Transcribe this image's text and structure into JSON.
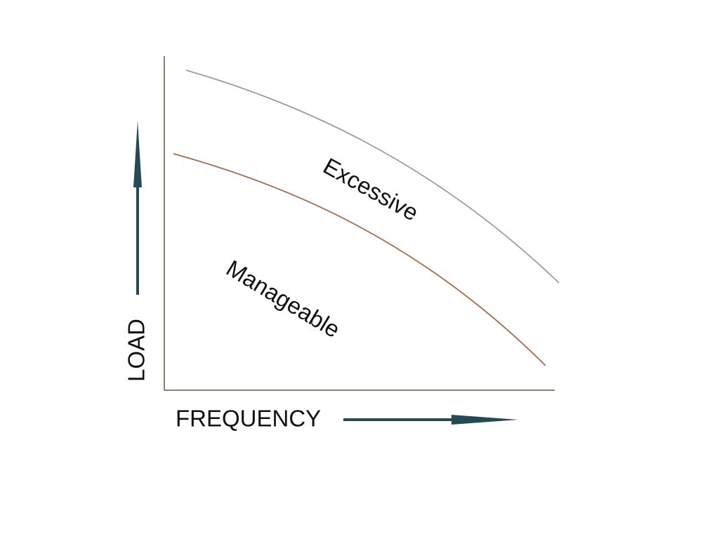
{
  "axes": {
    "y_label": "LOAD",
    "x_label": "FREQUENCY"
  },
  "regions": [
    {
      "label": "Excessive"
    },
    {
      "label": "Manageable"
    }
  ]
}
